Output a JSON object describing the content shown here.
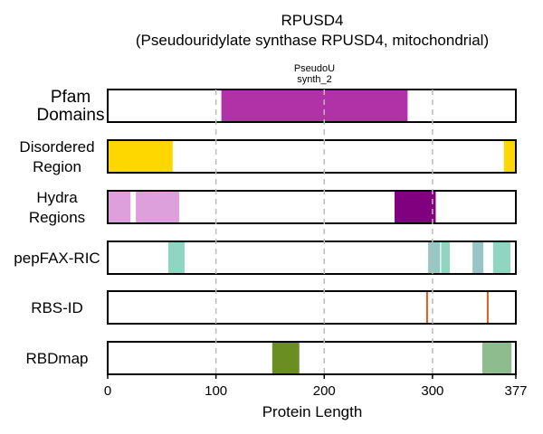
{
  "chart_data": {
    "type": "bar",
    "title": "RPUSD4",
    "subtitle": "(Pseudouridylate synthase RPUSD4, mitochondrial)",
    "xlabel": "Protein Length",
    "xlim": [
      0,
      377
    ],
    "xticks": [
      0,
      100,
      200,
      300,
      377
    ],
    "grid": "vertical dashed at 100, 200, 300",
    "tracks": [
      {
        "label_lines": [
          "Pfam",
          "Domains"
        ],
        "segments": [
          {
            "start": 105,
            "end": 277,
            "color": "#B032A6",
            "kind": "band"
          }
        ],
        "annotations": [
          {
            "lines": [
              "PseudoU",
              "synth_2"
            ],
            "x": 191
          }
        ]
      },
      {
        "label_lines": [
          "Disordered",
          "Region"
        ],
        "segments": [
          {
            "start": 0,
            "end": 60,
            "color": "#FFD700",
            "kind": "band"
          },
          {
            "start": 366,
            "end": 377,
            "color": "#FFD700",
            "kind": "band"
          }
        ]
      },
      {
        "label_lines": [
          "Hydra",
          "Regions"
        ],
        "segments": [
          {
            "start": 0,
            "end": 21,
            "color": "#DDA0DD",
            "kind": "band"
          },
          {
            "start": 26,
            "end": 66,
            "color": "#DDA0DD",
            "kind": "band"
          },
          {
            "start": 265,
            "end": 303,
            "color": "#800080",
            "kind": "band"
          }
        ]
      },
      {
        "label_lines": [
          "pepFAX-RIC"
        ],
        "segments": [
          {
            "start": 56,
            "end": 71,
            "color": "#90D5C0",
            "kind": "band"
          },
          {
            "start": 296,
            "end": 307,
            "color": "#98C8C4",
            "kind": "band"
          },
          {
            "start": 308,
            "end": 316,
            "color": "#90D5C0",
            "kind": "band"
          },
          {
            "start": 337,
            "end": 347,
            "color": "#98C4C8",
            "kind": "band"
          },
          {
            "start": 356,
            "end": 372,
            "color": "#90D5C0",
            "kind": "band"
          }
        ]
      },
      {
        "label_lines": [
          "RBS-ID"
        ],
        "segments": [
          {
            "start": 294,
            "end": 296,
            "color": "#E2581D",
            "kind": "line"
          },
          {
            "start": 350,
            "end": 352,
            "color": "#E2581D",
            "kind": "line"
          }
        ]
      },
      {
        "label_lines": [
          "RBDmap"
        ],
        "segments": [
          {
            "start": 152,
            "end": 177,
            "color": "#6B8E23",
            "kind": "band"
          },
          {
            "start": 346,
            "end": 373,
            "color": "#8FBC8F",
            "kind": "band"
          }
        ]
      }
    ]
  }
}
